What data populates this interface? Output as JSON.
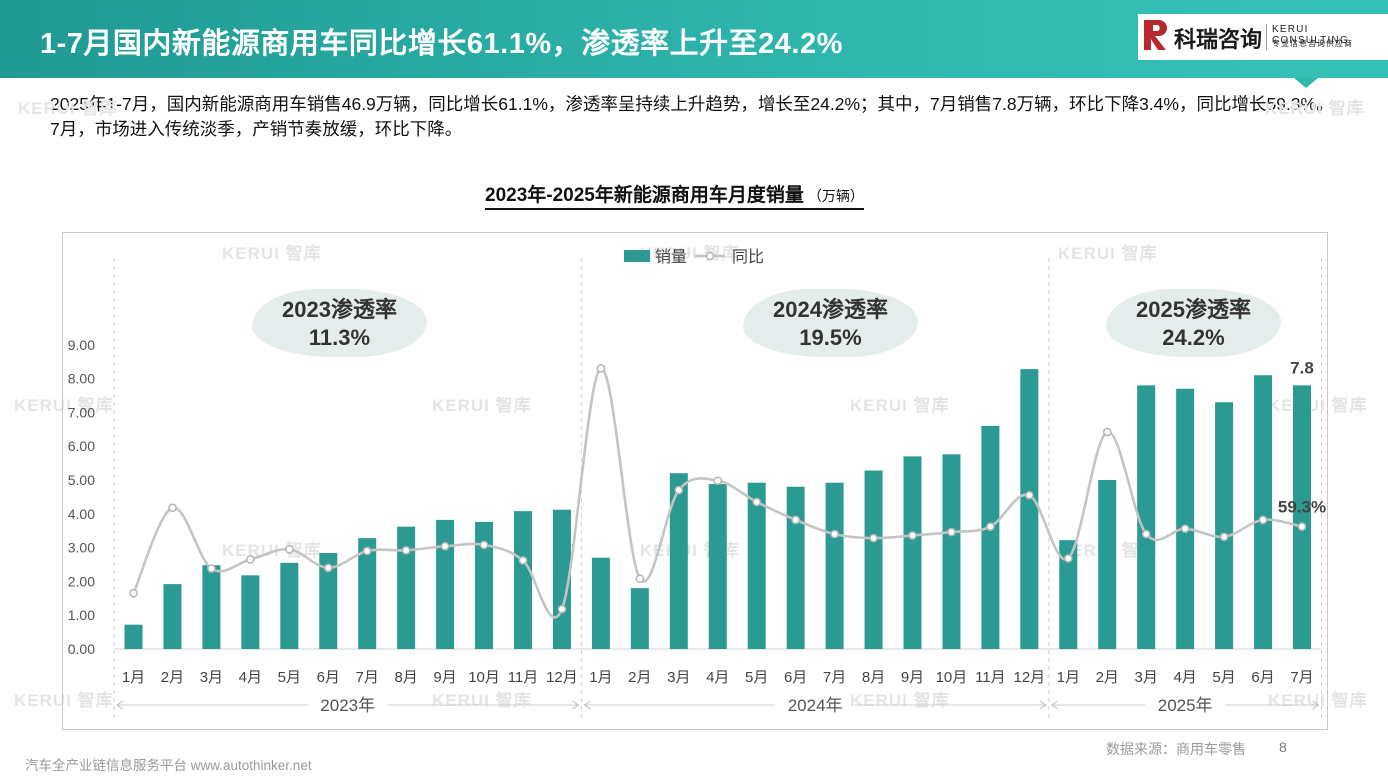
{
  "header": {
    "title": "1-7月国内新能源商用车同比增长61.1%，渗透率上升至24.2%",
    "logo_cn": "科瑞咨询",
    "logo_en": "KERUI CONSULTING",
    "logo_sub": "专业信息咨询供应商"
  },
  "summary": "2025年1-7月，国内新能源商用车销售46.9万辆，同比增长61.1%，渗透率呈持续上升趋势，增长至24.2%；其中，7月销售7.8万辆，环比下降3.4%，同比增长59.3%。7月，市场进入传统淡季，产销节奏放缓，环比下降。",
  "watermark": "KERUI 智库",
  "penetration": [
    {
      "title": "2023渗透率",
      "value": "11.3%"
    },
    {
      "title": "2024渗透率",
      "value": "19.5%"
    },
    {
      "title": "2025渗透率",
      "value": "24.2%"
    }
  ],
  "footer": {
    "platform": "汽车全产业链信息服务平台 www.autothinker.net",
    "source": "数据来源：商用车零售",
    "page": "8"
  },
  "colors": {
    "header": "#2fb7ad",
    "bar": "#2a9a93",
    "line": "#c4c4c4",
    "brush": "#e5ecec"
  },
  "chart_data": {
    "type": "bar",
    "title": "2023年-2025年新能源商用车月度销量",
    "unit": "（万辆）",
    "legend": [
      "销量",
      "同比"
    ],
    "legend_position": "top-center",
    "categories": [
      "1月",
      "2月",
      "3月",
      "4月",
      "5月",
      "6月",
      "7月",
      "8月",
      "9月",
      "10月",
      "11月",
      "12月",
      "1月",
      "2月",
      "3月",
      "4月",
      "5月",
      "6月",
      "7月",
      "8月",
      "9月",
      "10月",
      "11月",
      "12月",
      "1月",
      "2月",
      "3月",
      "4月",
      "5月",
      "6月",
      "7月"
    ],
    "groups": [
      {
        "label": "2023年",
        "count": 12
      },
      {
        "label": "2024年",
        "count": 12
      },
      {
        "label": "2025年",
        "count": 7
      }
    ],
    "y_ticks": [
      "0.00",
      "1.00",
      "2.00",
      "3.00",
      "4.00",
      "5.00",
      "6.00",
      "7.00",
      "8.00",
      "9.00"
    ],
    "ylim": [
      0,
      9
    ],
    "series": [
      {
        "name": "销量",
        "type": "bar",
        "values": [
          0.72,
          1.92,
          2.48,
          2.18,
          2.55,
          2.84,
          3.28,
          3.62,
          3.82,
          3.76,
          4.08,
          4.12,
          2.7,
          1.8,
          5.2,
          4.88,
          4.92,
          4.8,
          4.92,
          5.28,
          5.7,
          5.76,
          6.6,
          8.28,
          3.22,
          5.0,
          7.8,
          7.7,
          7.3,
          8.1,
          7.8
        ]
      },
      {
        "name": "同比",
        "type": "line",
        "values": [
          1.65,
          4.18,
          2.38,
          2.65,
          2.95,
          2.4,
          2.9,
          2.92,
          3.04,
          3.08,
          2.62,
          1.18,
          8.3,
          2.08,
          4.7,
          4.98,
          4.35,
          3.82,
          3.4,
          3.28,
          3.36,
          3.46,
          3.62,
          4.55,
          2.68,
          6.42,
          3.4,
          3.56,
          3.32,
          3.82,
          3.62
        ]
      }
    ],
    "annotations": [
      {
        "text": "7.8",
        "index": 30,
        "series": "销量"
      },
      {
        "text": "59.3%",
        "index": 30,
        "series": "同比"
      }
    ]
  }
}
